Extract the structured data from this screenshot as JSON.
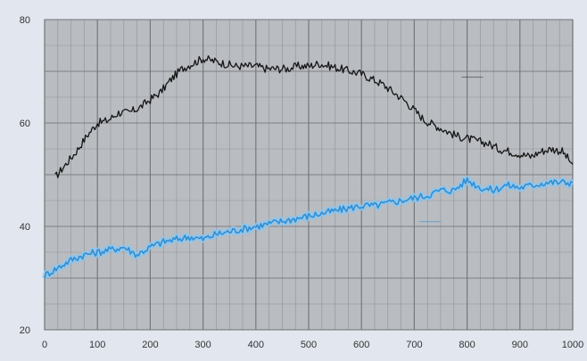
{
  "chart_data": {
    "type": "line",
    "title": "",
    "xlabel": "",
    "ylabel": "",
    "xlim": [
      0,
      1000
    ],
    "ylim": [
      20,
      80
    ],
    "x_ticks": [
      0,
      100,
      200,
      300,
      400,
      500,
      600,
      700,
      800,
      900,
      1000
    ],
    "x_tick_labels": [
      "0",
      "100",
      "200",
      "300",
      "400",
      "500",
      "600",
      "700",
      "800",
      "900",
      "1000"
    ],
    "y_ticks": [
      20,
      40,
      60,
      80
    ],
    "y_tick_labels": [
      "20",
      "40",
      "60",
      "80"
    ],
    "grid": true,
    "colors": {
      "plot_background": "#b9bcc0",
      "grid": "#6f7276",
      "figure_background": "#e2e6ee",
      "series_dark": "#151515",
      "series_blue": "#2d8fd6",
      "series_blue_band": "#8ec6ec"
    },
    "series": [
      {
        "name": "",
        "color": "#151515",
        "x": [
          20,
          40,
          60,
          80,
          100,
          120,
          140,
          160,
          180,
          200,
          220,
          240,
          260,
          280,
          300,
          320,
          340,
          360,
          380,
          400,
          420,
          440,
          460,
          480,
          500,
          520,
          540,
          560,
          580,
          600,
          620,
          640,
          660,
          680,
          700,
          720,
          740,
          760,
          780,
          800,
          820,
          840,
          860,
          880,
          900,
          920,
          940,
          960,
          980,
          1000
        ],
        "y": [
          49.5,
          52,
          54.5,
          57.5,
          60,
          60.5,
          62,
          62,
          63,
          64.5,
          66,
          68.5,
          70.5,
          71.5,
          72.5,
          72,
          71.5,
          71,
          71,
          71,
          70.5,
          70.5,
          70.5,
          71,
          71,
          71.5,
          71,
          70.5,
          70,
          69.5,
          68.5,
          67.5,
          66,
          64.5,
          62.5,
          60.5,
          59.5,
          58.5,
          57.5,
          57,
          56.5,
          56,
          55,
          54.5,
          54,
          53.5,
          54.5,
          55,
          54.5,
          52
        ]
      },
      {
        "name": "",
        "color": "#2d8fd6",
        "x": [
          0,
          25,
          50,
          75,
          100,
          125,
          150,
          175,
          200,
          225,
          250,
          275,
          300,
          325,
          350,
          375,
          400,
          425,
          450,
          475,
          500,
          525,
          550,
          575,
          600,
          625,
          650,
          675,
          700,
          725,
          750,
          775,
          800,
          825,
          850,
          875,
          900,
          925,
          950,
          975,
          1000
        ],
        "y": [
          30.5,
          32,
          33.5,
          34.5,
          35,
          35.5,
          36,
          34.5,
          36,
          37,
          37.5,
          38,
          37.5,
          38.5,
          39,
          39.5,
          40,
          40.5,
          41,
          41.5,
          42,
          42.5,
          43,
          43.5,
          44,
          44,
          44.5,
          45,
          45.5,
          46,
          47,
          47,
          49,
          47.5,
          47,
          48,
          47.5,
          48,
          48.5,
          48.5,
          48.5
        ]
      }
    ],
    "annotations": [
      {
        "text": "———",
        "x": 810,
        "y": 68.5,
        "color": "#333333"
      },
      {
        "text": "———",
        "x": 730,
        "y": 40.5,
        "color": "#2d8fd6"
      }
    ]
  }
}
